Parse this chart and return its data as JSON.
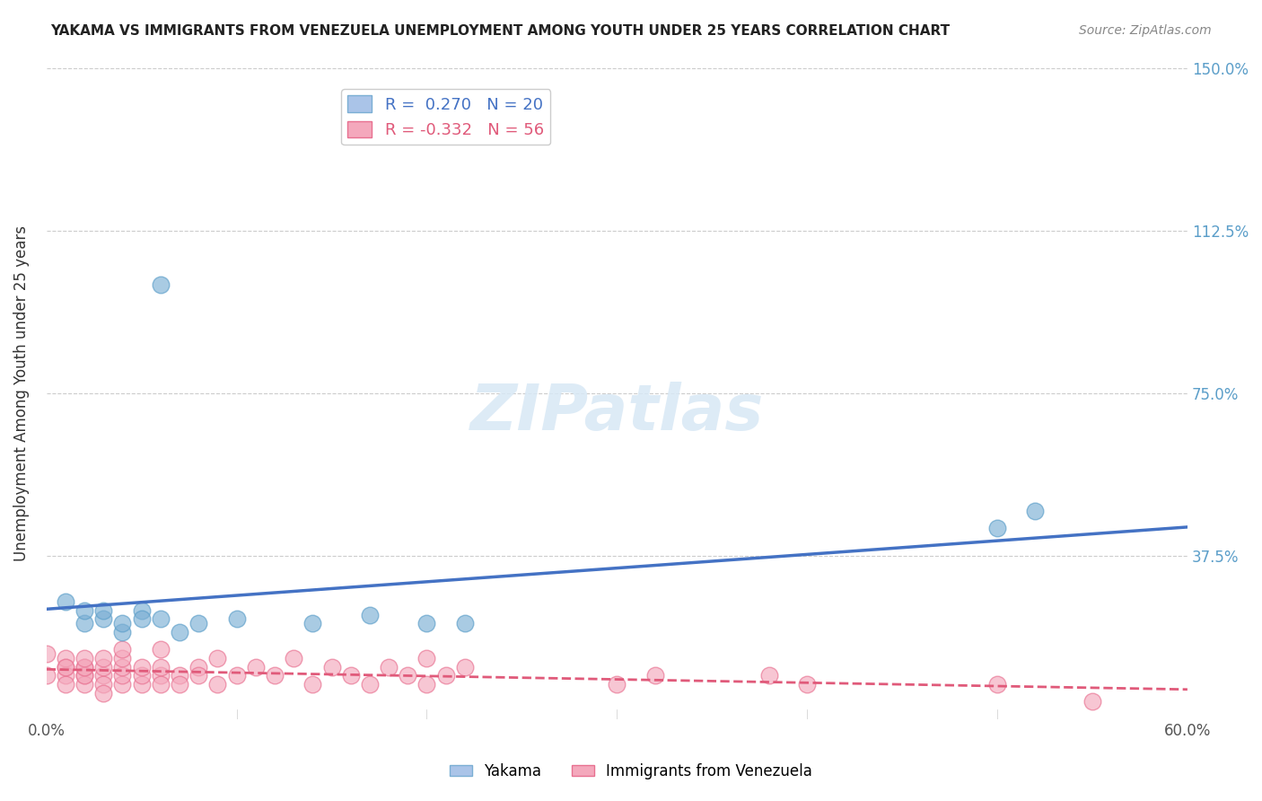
{
  "title": "YAKAMA VS IMMIGRANTS FROM VENEZUELA UNEMPLOYMENT AMONG YOUTH UNDER 25 YEARS CORRELATION CHART",
  "source": "Source: ZipAtlas.com",
  "xlabel": "",
  "ylabel": "Unemployment Among Youth under 25 years",
  "xlim": [
    0,
    0.6
  ],
  "ylim": [
    0,
    1.5
  ],
  "xticks": [
    0.0,
    0.1,
    0.2,
    0.3,
    0.4,
    0.5,
    0.6
  ],
  "xticklabels": [
    "0.0%",
    "",
    "",
    "",
    "",
    "",
    "60.0%"
  ],
  "ytick_positions": [
    0.375,
    0.75,
    1.125,
    1.5
  ],
  "ytick_labels": [
    "37.5%",
    "75.0%",
    "112.5%",
    "150.0%"
  ],
  "background_color": "#ffffff",
  "watermark": "ZIPatlas",
  "legend_entries": [
    {
      "label": "R =  0.270   N = 20",
      "color": "#aac4e8"
    },
    {
      "label": "R = -0.332   N = 56",
      "color": "#f4a8bc"
    }
  ],
  "series_blue": {
    "name": "Yakama",
    "color": "#7bafd4",
    "edge_color": "#5b9ec9",
    "R": 0.27,
    "N": 20,
    "line_color": "#4472c4",
    "x": [
      0.01,
      0.02,
      0.02,
      0.03,
      0.03,
      0.04,
      0.04,
      0.05,
      0.05,
      0.06,
      0.07,
      0.08,
      0.1,
      0.14,
      0.17,
      0.2,
      0.22,
      0.5,
      0.52,
      0.06
    ],
    "y": [
      0.27,
      0.22,
      0.25,
      0.23,
      0.25,
      0.2,
      0.22,
      0.25,
      0.23,
      0.23,
      0.2,
      0.22,
      0.23,
      0.22,
      0.24,
      0.22,
      0.22,
      0.44,
      0.48,
      1.0
    ]
  },
  "series_pink": {
    "name": "Immigrants from Venezuela",
    "color": "#f4a8bc",
    "edge_color": "#e87090",
    "R": -0.332,
    "N": 56,
    "line_color": "#e05a7a",
    "x": [
      0.0,
      0.0,
      0.01,
      0.01,
      0.01,
      0.01,
      0.01,
      0.02,
      0.02,
      0.02,
      0.02,
      0.02,
      0.02,
      0.03,
      0.03,
      0.03,
      0.03,
      0.03,
      0.04,
      0.04,
      0.04,
      0.04,
      0.05,
      0.05,
      0.05,
      0.06,
      0.06,
      0.06,
      0.07,
      0.07,
      0.08,
      0.08,
      0.09,
      0.09,
      0.1,
      0.11,
      0.12,
      0.13,
      0.14,
      0.15,
      0.16,
      0.17,
      0.18,
      0.19,
      0.2,
      0.2,
      0.21,
      0.22,
      0.3,
      0.32,
      0.38,
      0.4,
      0.5,
      0.55,
      0.04,
      0.06
    ],
    "y": [
      0.15,
      0.1,
      0.12,
      0.14,
      0.1,
      0.08,
      0.12,
      0.1,
      0.12,
      0.08,
      0.1,
      0.12,
      0.14,
      0.1,
      0.08,
      0.12,
      0.14,
      0.06,
      0.08,
      0.1,
      0.12,
      0.14,
      0.08,
      0.1,
      0.12,
      0.1,
      0.12,
      0.08,
      0.1,
      0.08,
      0.12,
      0.1,
      0.14,
      0.08,
      0.1,
      0.12,
      0.1,
      0.14,
      0.08,
      0.12,
      0.1,
      0.08,
      0.12,
      0.1,
      0.14,
      0.08,
      0.1,
      0.12,
      0.08,
      0.1,
      0.1,
      0.08,
      0.08,
      0.04,
      0.16,
      0.16
    ]
  }
}
